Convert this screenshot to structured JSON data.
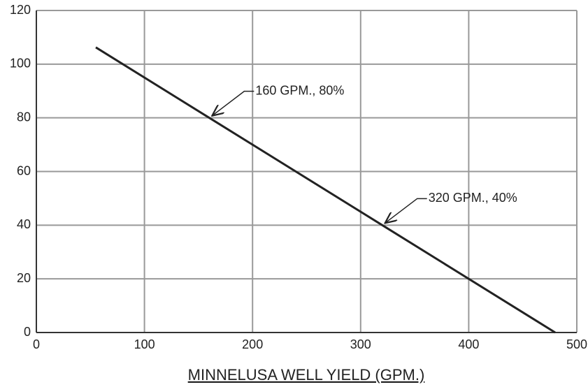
{
  "chart_data": {
    "type": "line",
    "xlabel": "MINNELUSA WELL YIELD (GPM.)",
    "x": [
      55,
      160,
      320,
      480
    ],
    "series": [
      {
        "color": "#222222",
        "values": [
          106.25,
          80,
          40,
          0
        ]
      }
    ],
    "xlim": [
      0,
      500
    ],
    "xticks": [
      0,
      100,
      200,
      300,
      400,
      500
    ],
    "ylim": [
      0,
      120
    ],
    "yticks": [
      0,
      20,
      40,
      60,
      80,
      100,
      120
    ],
    "grid": true,
    "annotations": [
      {
        "text": "160 GPM., 80%",
        "x": 160,
        "y": 80
      },
      {
        "text": "320 GPM., 40%",
        "x": 320,
        "y": 40
      }
    ]
  }
}
